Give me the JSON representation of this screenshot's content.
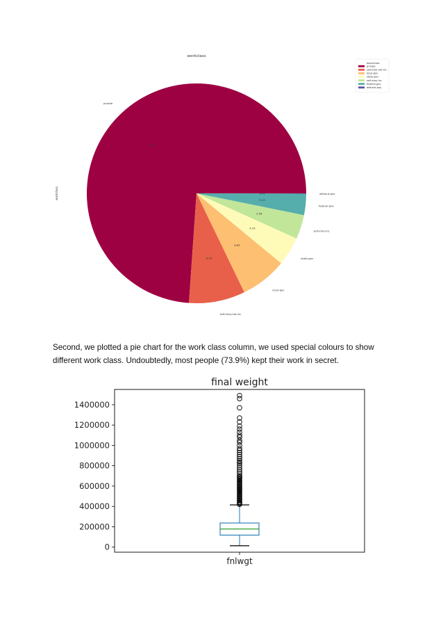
{
  "paragraph": {
    "text": "Second, we plotted a pie chart for the work class column, we used special colours to show different work class. Undoubtedly, most people (73.9%) kept their work in secret."
  },
  "chart_data": [
    {
      "type": "pie",
      "title": "workclass",
      "ylabel": "workclass",
      "legend_title": "workclass",
      "legend_position": "top-right",
      "categories": [
        "private",
        "self-emp-not-inc",
        "local-gov",
        "state-gov",
        "self-emp-inc",
        "federal-gov",
        "without-pay"
      ],
      "values": [
        73.94,
        8.29,
        6.85,
        4.24,
        3.56,
        3.13,
        0.05
      ],
      "value_labels": [
        "73.94",
        "8.29",
        "6.85",
        "4.24",
        "3.56",
        "3.13",
        "0.05"
      ],
      "colors": [
        "#9e0142",
        "#e8604a",
        "#fdbf71",
        "#fefbb8",
        "#c1e69a",
        "#55aeac",
        "#5e4fa2"
      ]
    },
    {
      "type": "box",
      "title": "final weight",
      "categories": [
        "fnlwgt"
      ],
      "ylim": [
        -50000,
        1550000
      ],
      "yticks": [
        0,
        200000,
        400000,
        600000,
        800000,
        1000000,
        1200000,
        1400000
      ],
      "box": {
        "whisker_low": 13000,
        "q1": 118000,
        "median": 178000,
        "q3": 237000,
        "whisker_high": 415000
      },
      "outliers": [
        420000,
        430000,
        440000,
        450000,
        460000,
        470000,
        480000,
        490000,
        500000,
        510000,
        520000,
        530000,
        540000,
        550000,
        560000,
        570000,
        580000,
        590000,
        600000,
        610000,
        620000,
        630000,
        640000,
        650000,
        660000,
        670000,
        680000,
        690000,
        700000,
        720000,
        740000,
        760000,
        780000,
        800000,
        820000,
        835000,
        850000,
        870000,
        890000,
        910000,
        930000,
        950000,
        970000,
        1000000,
        1030000,
        1050000,
        1080000,
        1100000,
        1130000,
        1160000,
        1190000,
        1230000,
        1270000,
        1370000,
        1460000,
        1490000
      ],
      "colors": {
        "box": "#1f77b4",
        "median": "#2ca02c",
        "whisker": "#000000"
      }
    }
  ]
}
